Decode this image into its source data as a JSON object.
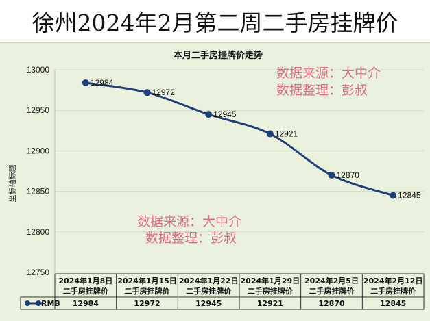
{
  "page": {
    "title": "徐州2024年2月第二周二手房挂牌价"
  },
  "watermark": {
    "line1": "数据来源：大中介",
    "line2": "数据整理：彭叔",
    "color": "#e0708a"
  },
  "chart_data": {
    "type": "line",
    "title": "本月二手房挂牌价走势",
    "ylabel": "坐标轴标题",
    "xlabel": "",
    "ylim": [
      12750,
      13000
    ],
    "yticks": [
      12750,
      12800,
      12850,
      12900,
      12950,
      13000
    ],
    "categories": [
      "2024年1月8日",
      "2024年1月15日",
      "2024年1月22日",
      "2024年1月29日",
      "2024年2月5日",
      "2024年2月12日"
    ],
    "table_header": "二手房挂牌价",
    "series": [
      {
        "name": "RMB",
        "values": [
          12984,
          12972,
          12945,
          12921,
          12870,
          12845
        ],
        "color": "#1f3f7a"
      }
    ],
    "grid": true,
    "legend": "in-table"
  }
}
